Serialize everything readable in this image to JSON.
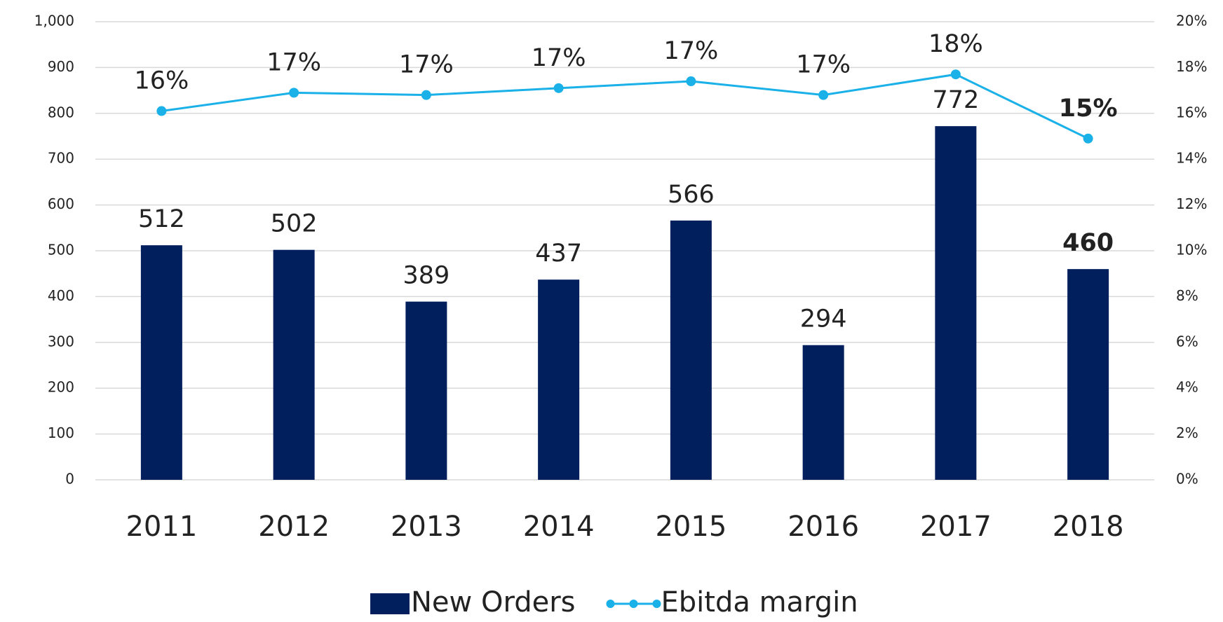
{
  "chart_data": {
    "type": "bar",
    "categories": [
      "2011",
      "2012",
      "2013",
      "2014",
      "2015",
      "2016",
      "2017",
      "2018"
    ],
    "series": [
      {
        "name": "New Orders",
        "type": "bar",
        "color": "#001f5c",
        "values": [
          512,
          502,
          389,
          437,
          566,
          294,
          772,
          460
        ]
      },
      {
        "name": "Ebitda margin",
        "type": "line",
        "axis": "y2",
        "color": "#1ab0e8",
        "values": [
          16.1,
          16.9,
          16.8,
          17.1,
          17.4,
          16.8,
          17.7,
          14.9
        ],
        "value_labels": [
          "16%",
          "17%",
          "17%",
          "17%",
          "17%",
          "17%",
          "18%",
          "15%"
        ]
      }
    ],
    "ylim": [
      0,
      1000
    ],
    "yticks": [
      0,
      100,
      200,
      300,
      400,
      500,
      600,
      700,
      800,
      900,
      {
        "value": 1000,
        "label": "1,000"
      }
    ],
    "y2lim": [
      0,
      20
    ],
    "y2ticks": [
      {
        "value": 0,
        "label": "0%"
      },
      {
        "value": 2,
        "label": "2%"
      },
      {
        "value": 4,
        "label": "4%"
      },
      {
        "value": 6,
        "label": "6%"
      },
      {
        "value": 8,
        "label": "8%"
      },
      {
        "value": 10,
        "label": "10%"
      },
      {
        "value": 12,
        "label": "12%"
      },
      {
        "value": 14,
        "label": "14%"
      },
      {
        "value": 16,
        "label": "16%"
      },
      {
        "value": 18,
        "label": "18%"
      },
      {
        "value": 20,
        "label": "20%"
      }
    ],
    "grid": true,
    "legend": "bottom"
  }
}
